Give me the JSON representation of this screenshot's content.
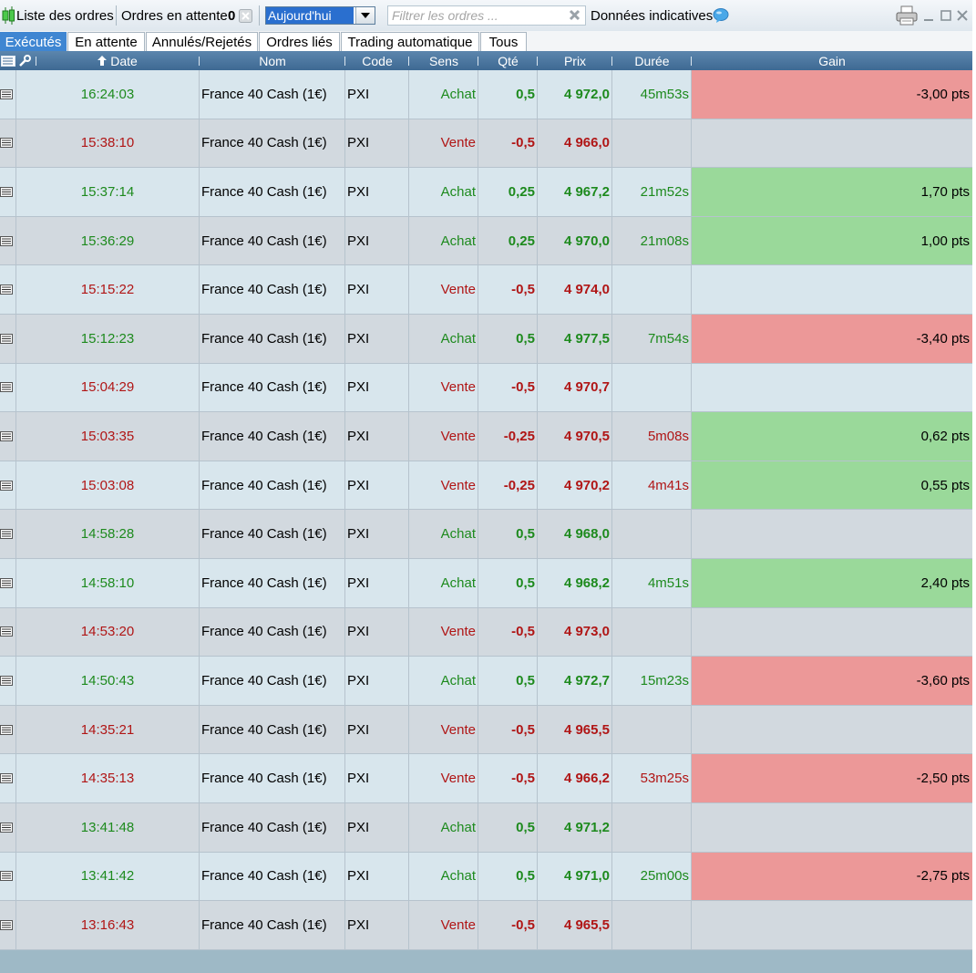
{
  "toolbar": {
    "title": "Liste des ordres",
    "pending_label": "Ordres en attente",
    "pending_count": "0",
    "period_value": "Aujourd'hui",
    "filter_placeholder": "Filtrer les ordres ...",
    "data_label": "Données indicatives"
  },
  "tabs": [
    {
      "label": "Exécutés",
      "active": true
    },
    {
      "label": "En attente",
      "active": false
    },
    {
      "label": "Annulés/Rejetés",
      "active": false
    },
    {
      "label": "Ordres liés",
      "active": false
    },
    {
      "label": "Trading automatique",
      "active": false
    },
    {
      "label": "Tous",
      "active": false
    }
  ],
  "columns": {
    "date": "Date",
    "nom": "Nom",
    "code": "Code",
    "sens": "Sens",
    "qte": "Qté",
    "prix": "Prix",
    "duree": "Durée",
    "gain": "Gain"
  },
  "colors": {
    "buy": "#1d8a1d",
    "sell": "#b01515",
    "gain_negative_bg": "#ec9898",
    "gain_positive_bg": "#9ad99a",
    "row_light": "#d8e6ed",
    "row_dark": "#d2d9df",
    "header": "#4a74a0",
    "active_tab": "#3f86d2"
  },
  "rows": [
    {
      "time": "16:24:03",
      "name": "France 40 Cash (1€)",
      "code": "PXI",
      "side": "Achat",
      "qty": "0,5",
      "price": "4 972,0",
      "duration": "45m53s",
      "gain": "-3,00 pts",
      "gain_sign": "neg"
    },
    {
      "time": "15:38:10",
      "name": "France 40 Cash (1€)",
      "code": "PXI",
      "side": "Vente",
      "qty": "-0,5",
      "price": "4 966,0",
      "duration": "",
      "gain": "",
      "gain_sign": ""
    },
    {
      "time": "15:37:14",
      "name": "France 40 Cash (1€)",
      "code": "PXI",
      "side": "Achat",
      "qty": "0,25",
      "price": "4 967,2",
      "duration": "21m52s",
      "gain": "1,70 pts",
      "gain_sign": "pos"
    },
    {
      "time": "15:36:29",
      "name": "France 40 Cash (1€)",
      "code": "PXI",
      "side": "Achat",
      "qty": "0,25",
      "price": "4 970,0",
      "duration": "21m08s",
      "gain": "1,00 pts",
      "gain_sign": "pos"
    },
    {
      "time": "15:15:22",
      "name": "France 40 Cash (1€)",
      "code": "PXI",
      "side": "Vente",
      "qty": "-0,5",
      "price": "4 974,0",
      "duration": "",
      "gain": "",
      "gain_sign": ""
    },
    {
      "time": "15:12:23",
      "name": "France 40 Cash (1€)",
      "code": "PXI",
      "side": "Achat",
      "qty": "0,5",
      "price": "4 977,5",
      "duration": "7m54s",
      "gain": "-3,40 pts",
      "gain_sign": "neg"
    },
    {
      "time": "15:04:29",
      "name": "France 40 Cash (1€)",
      "code": "PXI",
      "side": "Vente",
      "qty": "-0,5",
      "price": "4 970,7",
      "duration": "",
      "gain": "",
      "gain_sign": ""
    },
    {
      "time": "15:03:35",
      "name": "France 40 Cash (1€)",
      "code": "PXI",
      "side": "Vente",
      "qty": "-0,25",
      "price": "4 970,5",
      "duration": "5m08s",
      "gain": "0,62 pts",
      "gain_sign": "pos"
    },
    {
      "time": "15:03:08",
      "name": "France 40 Cash (1€)",
      "code": "PXI",
      "side": "Vente",
      "qty": "-0,25",
      "price": "4 970,2",
      "duration": "4m41s",
      "gain": "0,55 pts",
      "gain_sign": "pos"
    },
    {
      "time": "14:58:28",
      "name": "France 40 Cash (1€)",
      "code": "PXI",
      "side": "Achat",
      "qty": "0,5",
      "price": "4 968,0",
      "duration": "",
      "gain": "",
      "gain_sign": ""
    },
    {
      "time": "14:58:10",
      "name": "France 40 Cash (1€)",
      "code": "PXI",
      "side": "Achat",
      "qty": "0,5",
      "price": "4 968,2",
      "duration": "4m51s",
      "gain": "2,40 pts",
      "gain_sign": "pos"
    },
    {
      "time": "14:53:20",
      "name": "France 40 Cash (1€)",
      "code": "PXI",
      "side": "Vente",
      "qty": "-0,5",
      "price": "4 973,0",
      "duration": "",
      "gain": "",
      "gain_sign": ""
    },
    {
      "time": "14:50:43",
      "name": "France 40 Cash (1€)",
      "code": "PXI",
      "side": "Achat",
      "qty": "0,5",
      "price": "4 972,7",
      "duration": "15m23s",
      "gain": "-3,60 pts",
      "gain_sign": "neg"
    },
    {
      "time": "14:35:21",
      "name": "France 40 Cash (1€)",
      "code": "PXI",
      "side": "Vente",
      "qty": "-0,5",
      "price": "4 965,5",
      "duration": "",
      "gain": "",
      "gain_sign": ""
    },
    {
      "time": "14:35:13",
      "name": "France 40 Cash (1€)",
      "code": "PXI",
      "side": "Vente",
      "qty": "-0,5",
      "price": "4 966,2",
      "duration": "53m25s",
      "gain": "-2,50 pts",
      "gain_sign": "neg"
    },
    {
      "time": "13:41:48",
      "name": "France 40 Cash (1€)",
      "code": "PXI",
      "side": "Achat",
      "qty": "0,5",
      "price": "4 971,2",
      "duration": "",
      "gain": "",
      "gain_sign": ""
    },
    {
      "time": "13:41:42",
      "name": "France 40 Cash (1€)",
      "code": "PXI",
      "side": "Achat",
      "qty": "0,5",
      "price": "4 971,0",
      "duration": "25m00s",
      "gain": "-2,75 pts",
      "gain_sign": "neg"
    },
    {
      "time": "13:16:43",
      "name": "France 40 Cash (1€)",
      "code": "PXI",
      "side": "Vente",
      "qty": "-0,5",
      "price": "4 965,5",
      "duration": "",
      "gain": "",
      "gain_sign": ""
    }
  ]
}
